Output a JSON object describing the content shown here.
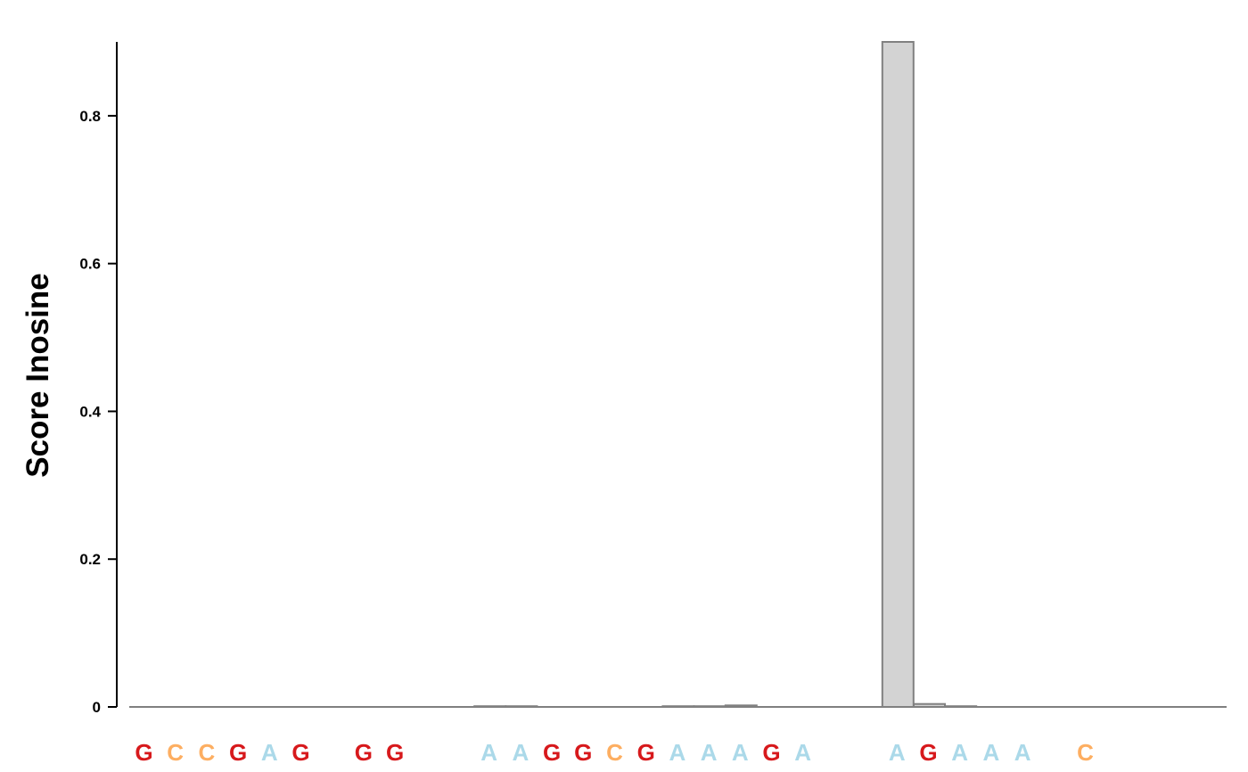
{
  "chart_data": {
    "type": "bar",
    "title": "",
    "xlabel": "",
    "ylabel": "Score Inosine",
    "ylim": [
      0,
      0.9
    ],
    "yticks": [
      0,
      0.2,
      0.4,
      0.6,
      0.8
    ],
    "ytick_labels": [
      "0",
      "0.2",
      "0.4",
      "0.6",
      "0.8"
    ],
    "grid": false,
    "bar_color": "#d3d3d3",
    "bar_edge_color": "#808080",
    "base_colors": {
      "G": "#d7191c",
      "C": "#fdae61",
      "A": "#abd9e9"
    },
    "categories": [
      "G",
      "C",
      "C",
      "G",
      "A",
      "G",
      "",
      "G",
      "G",
      "",
      "",
      "A",
      "A",
      "G",
      "G",
      "C",
      "G",
      "A",
      "A",
      "A",
      "G",
      "A",
      "",
      "",
      "A",
      "G",
      "A",
      "A",
      "A",
      "",
      "C",
      "",
      "",
      "",
      ""
    ],
    "values": [
      0,
      0,
      0,
      0,
      0,
      0,
      0,
      0,
      0,
      0,
      0,
      0.001,
      0.001,
      0,
      0,
      0,
      0,
      0.001,
      0.001,
      0.002,
      0,
      0,
      0,
      0,
      0.9,
      0.004,
      0.001,
      0,
      0,
      0,
      0,
      0,
      0,
      0,
      0
    ]
  }
}
